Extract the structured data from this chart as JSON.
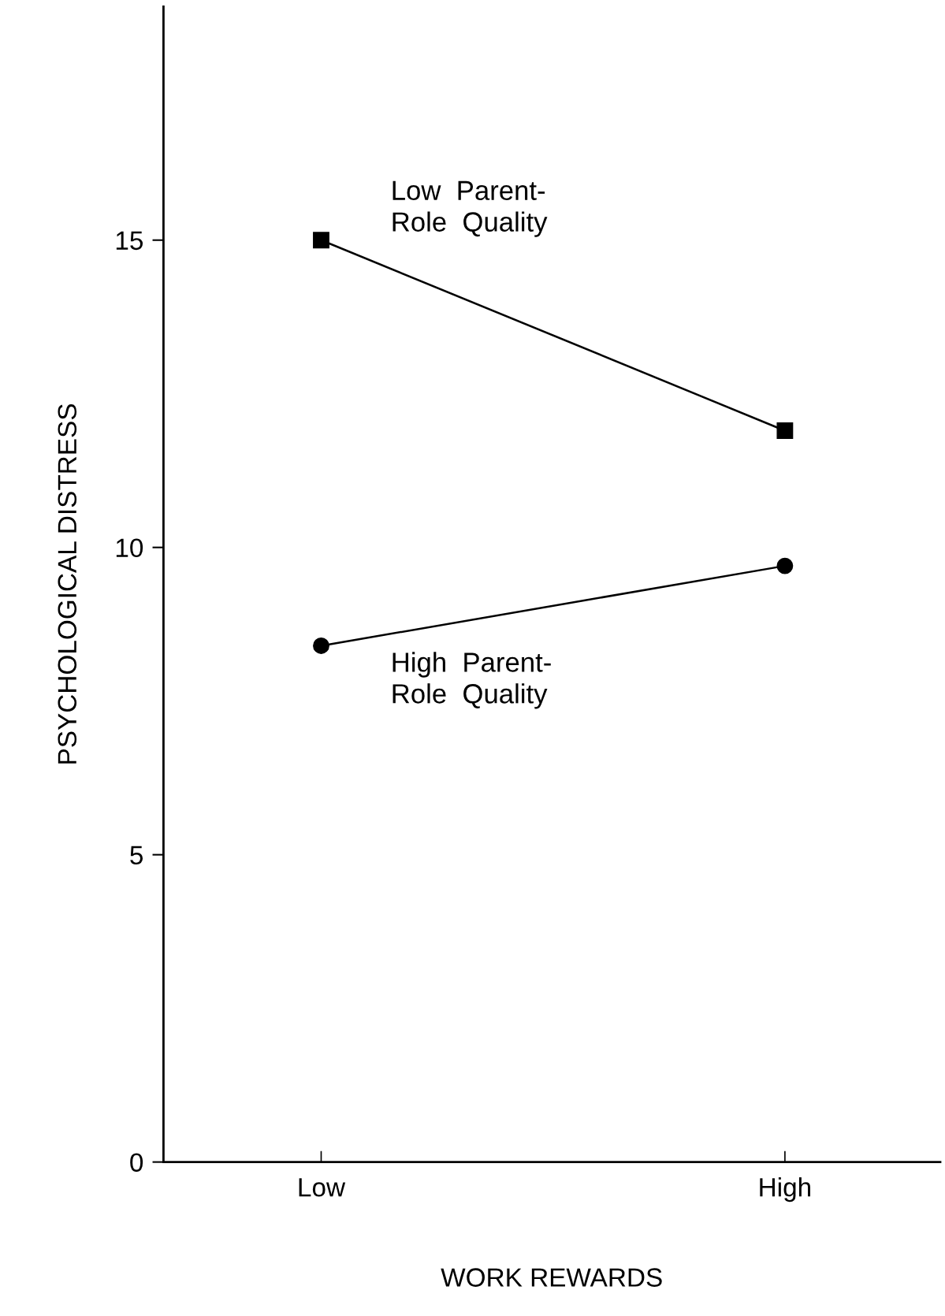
{
  "chart_data": {
    "type": "line",
    "xlabel": "WORK REWARDS",
    "ylabel": "PSYCHOLOGICAL DISTRESS",
    "categories": [
      "Low",
      "High"
    ],
    "series": [
      {
        "name": "Low  Parent-\nRole  Quality",
        "color": "#000000",
        "values": [
          15,
          11.9
        ],
        "marker": "square"
      },
      {
        "name": "High  Parent-\nRole  Quality",
        "color": "#000000",
        "values": [
          8.4,
          9.7
        ],
        "marker": "circle"
      }
    ],
    "ylim": [
      0,
      18.8
    ],
    "yticks": [
      0,
      5,
      10,
      15
    ],
    "grid": false,
    "legend": false,
    "line_style": "solid"
  }
}
